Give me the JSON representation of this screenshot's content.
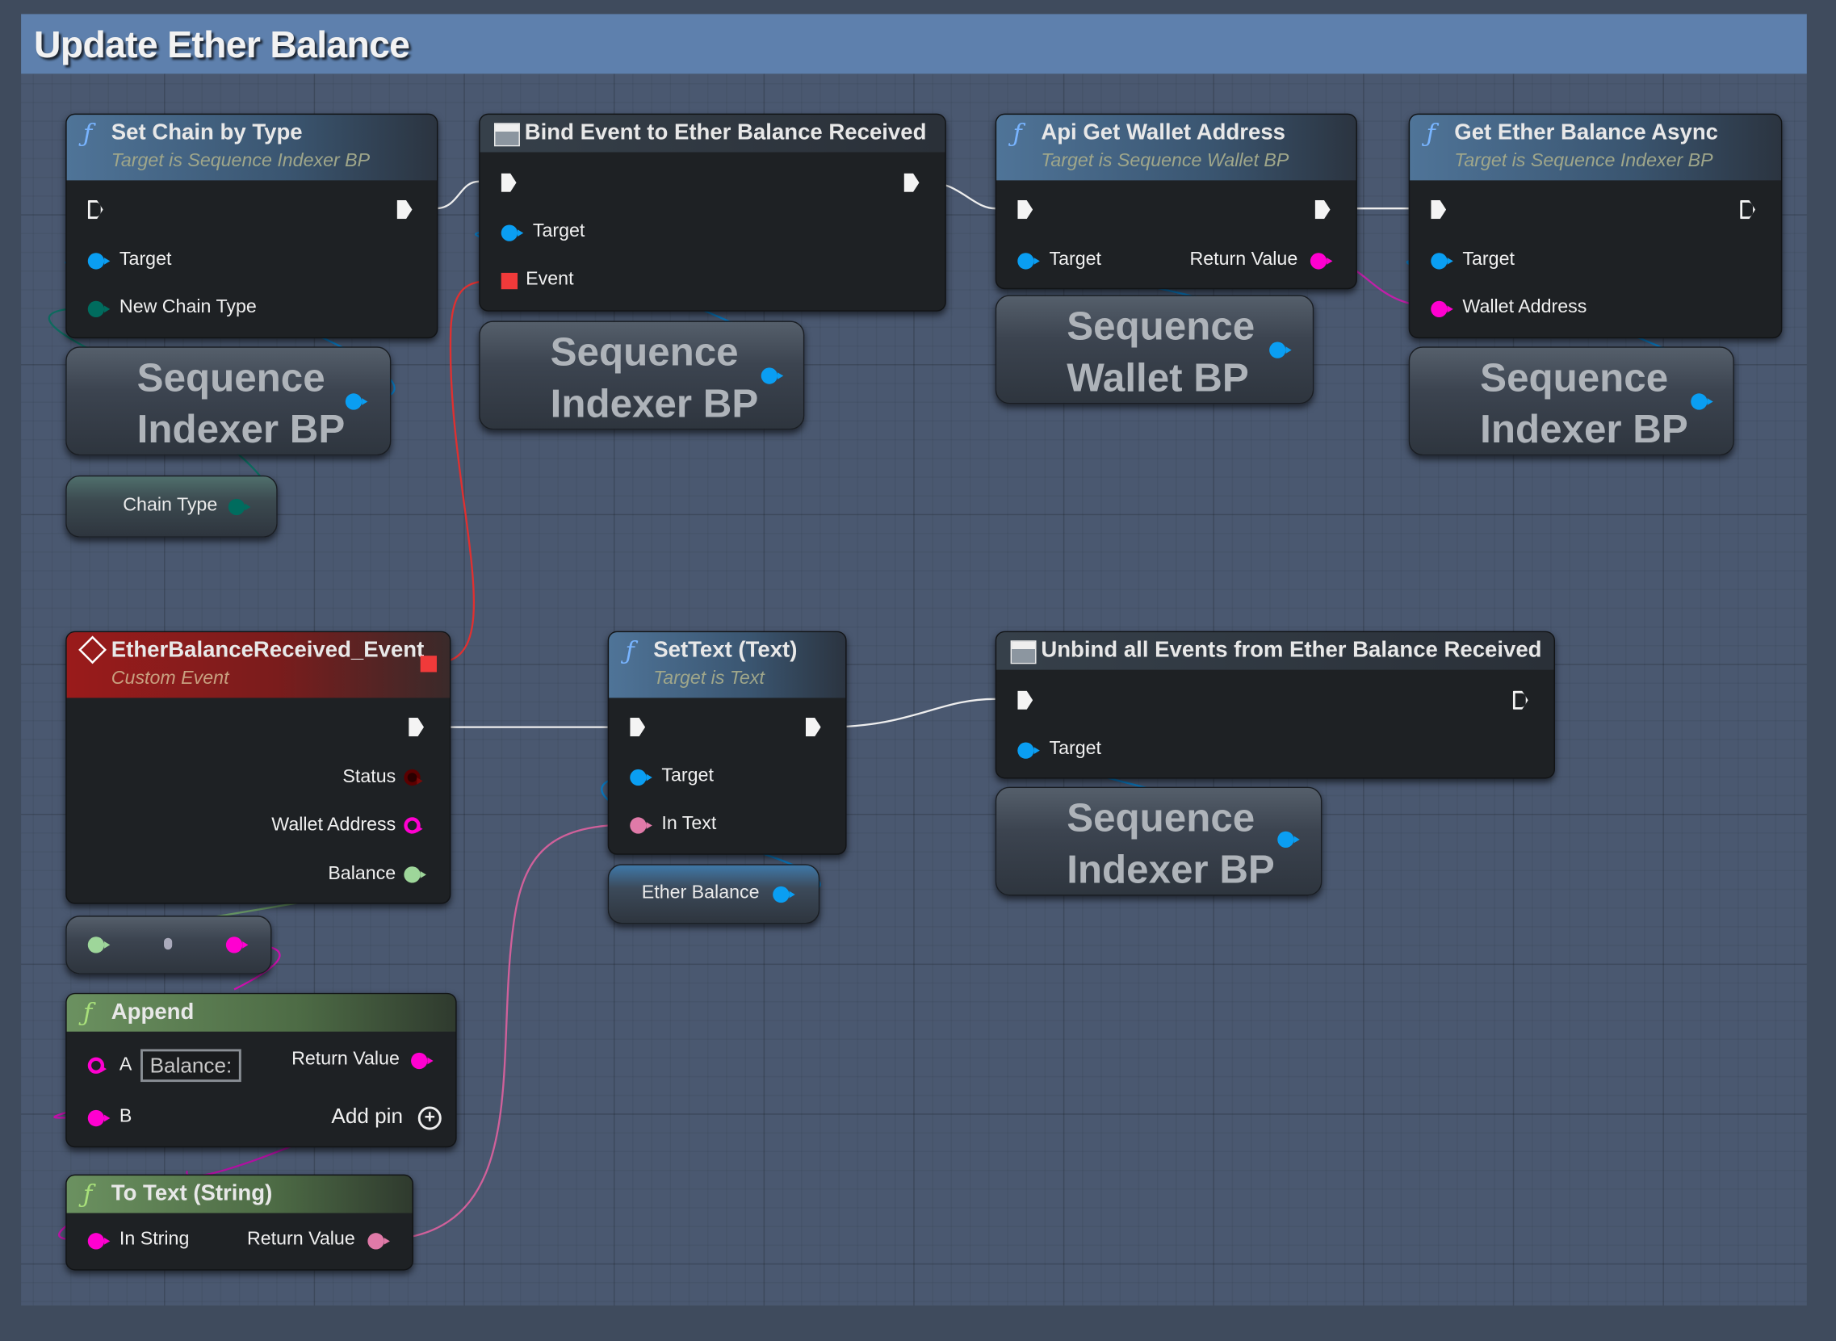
{
  "comment_title": "Update Ether Balance",
  "nodes": {
    "set_chain": {
      "title": "Set Chain by Type",
      "subtitle": "Target is Sequence Indexer BP",
      "pins": [
        "Target",
        "New Chain Type"
      ]
    },
    "bind_event": {
      "title": "Bind Event to Ether Balance Received",
      "pins": [
        "Target",
        "Event"
      ]
    },
    "api_wallet": {
      "title": "Api Get Wallet Address",
      "subtitle": "Target is Sequence Wallet BP",
      "pins": [
        "Target",
        "Return Value"
      ]
    },
    "get_balance": {
      "title": "Get Ether Balance Async",
      "subtitle": "Target is Sequence Indexer BP",
      "pins": [
        "Target",
        "Wallet Address"
      ]
    },
    "event": {
      "title": "EtherBalanceReceived_Event",
      "subtitle": "Custom Event",
      "pins": [
        "Status",
        "Wallet Address",
        "Balance"
      ]
    },
    "settext": {
      "title": "SetText (Text)",
      "subtitle": "Target is Text",
      "pins": [
        "Target",
        "In Text"
      ]
    },
    "unbind": {
      "title": "Unbind all Events from Ether Balance Received",
      "pins": [
        "Target"
      ]
    },
    "append": {
      "title": "Append",
      "pins": [
        "A",
        "B",
        "Return Value"
      ],
      "a_value": "Balance:",
      "add_pin": "Add pin"
    },
    "totext": {
      "title": "To Text (String)",
      "pins": [
        "In String",
        "Return Value"
      ]
    }
  },
  "variables": {
    "indexer": "Sequence\nIndexer BP",
    "wallet": "Sequence\nWallet BP",
    "chain_type": "Chain Type",
    "ether_balance": "Ether Balance"
  },
  "colors": {
    "object": "#0a9ef2",
    "enum": "#006c5e",
    "string": "#ff00d0",
    "text": "#e07aa8",
    "float": "#9ed69a",
    "delegate": "#f03a3a",
    "comment": "#5e80ad"
  }
}
